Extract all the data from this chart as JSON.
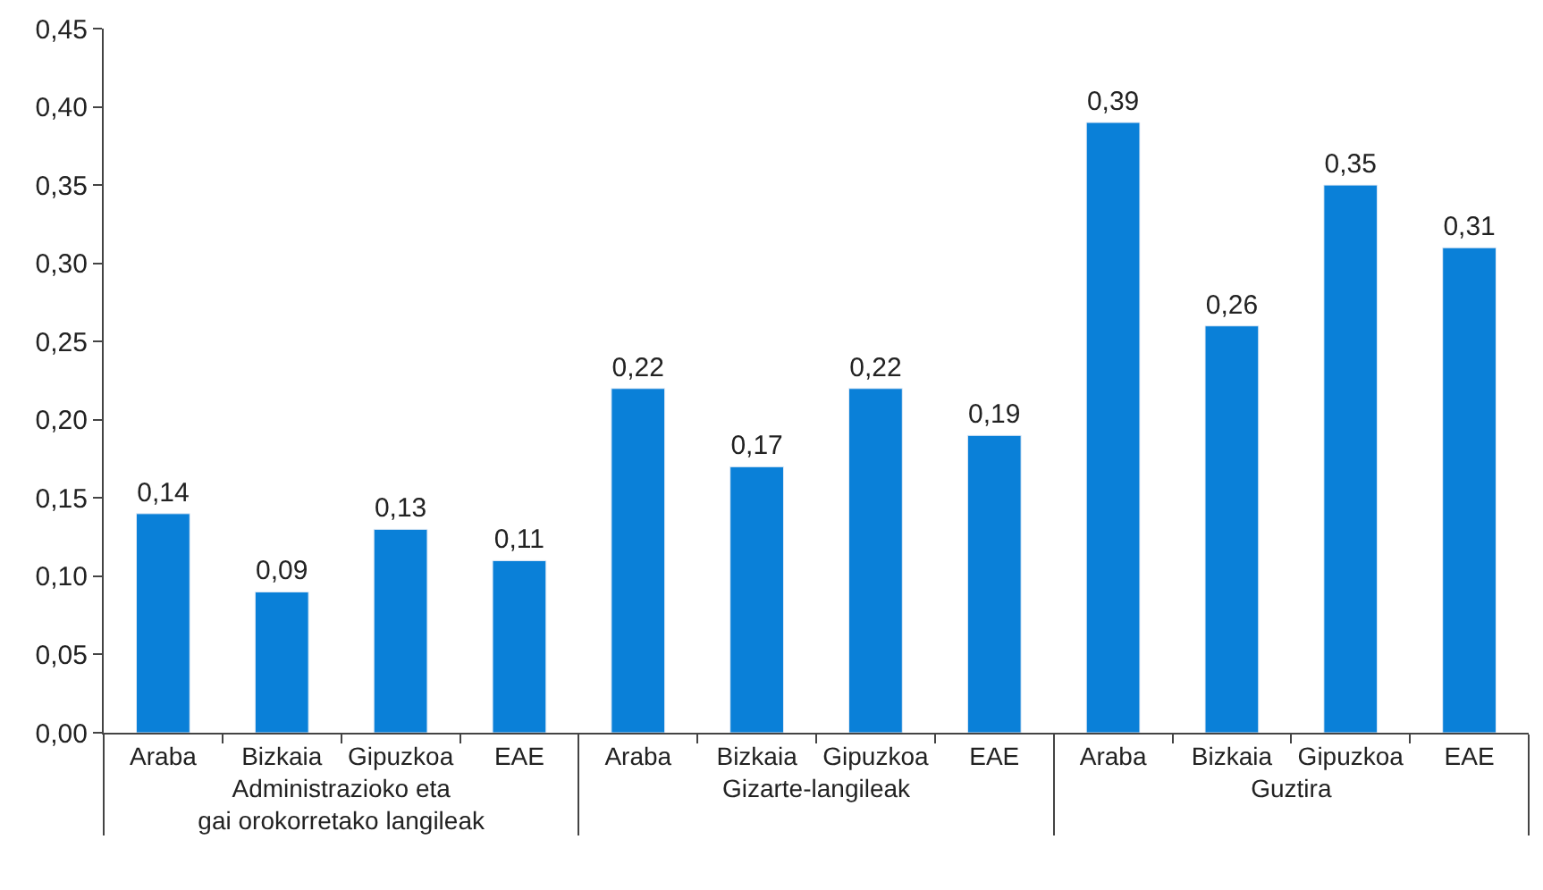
{
  "chart_data": {
    "type": "bar",
    "categories": [
      "Araba",
      "Bizkaia",
      "Gipuzkoa",
      "EAE",
      "Araba",
      "Bizkaia",
      "Gipuzkoa",
      "EAE",
      "Araba",
      "Bizkaia",
      "Gipuzkoa",
      "EAE"
    ],
    "annotations": [
      "Administrazioko eta\ngai orokorretako langileak",
      "Gizarte-langileak",
      "Guztira"
    ],
    "series": [
      {
        "color": "#0a80d8",
        "values": [
          0.14,
          0.09,
          0.13,
          0.11,
          0.22,
          0.17,
          0.22,
          0.19,
          0.39,
          0.26,
          0.35,
          0.31
        ],
        "value_labels": [
          "0,14",
          "0,09",
          "0,13",
          "0,11",
          "0,22",
          "0,17",
          "0,22",
          "0,19",
          "0,39",
          "0,26",
          "0,35",
          "0,31"
        ]
      }
    ],
    "ylim": [
      0,
      0.45
    ],
    "yticks": [
      {
        "value": 0,
        "label": "0,00"
      },
      {
        "value": 0.05,
        "label": "0,05"
      },
      {
        "value": 0.1,
        "label": "0,10"
      },
      {
        "value": 0.15,
        "label": "0,15"
      },
      {
        "value": 0.2,
        "label": "0,20"
      },
      {
        "value": 0.25,
        "label": "0,25"
      },
      {
        "value": 0.3,
        "label": "0,30"
      },
      {
        "value": 0.35,
        "label": "0,35"
      },
      {
        "value": 0.4,
        "label": "0,40"
      },
      {
        "value": 0.45,
        "label": "0,45"
      }
    ],
    "legend": false
  }
}
